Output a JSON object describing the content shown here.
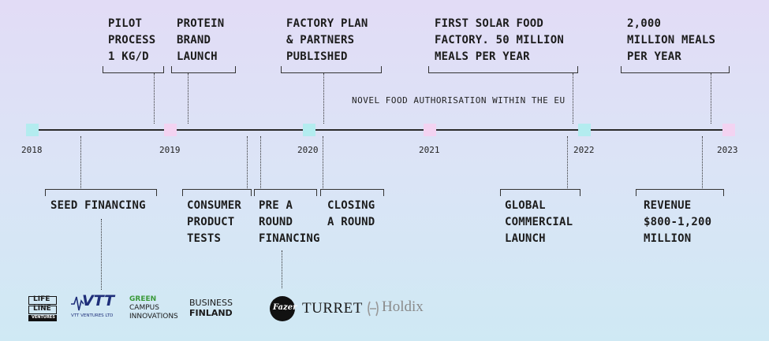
{
  "years": [
    "2018",
    "2019",
    "2020",
    "2021",
    "2022",
    "2023"
  ],
  "milestones_top": {
    "pilot": "PILOT\nPROCESS\n1 KG/D",
    "protein": "PROTEIN\nBRAND\nLAUNCH",
    "factory_plan": "FACTORY PLAN\n& PARTNERS\nPUBLISHED",
    "first_solar": "FIRST SOLAR FOOD\nFACTORY. 50 MILLION\nMEALS PER YEAR",
    "meals_2000": "2,000\nMILLION MEALS\nPER YEAR"
  },
  "novel_food": "NOVEL FOOD AUTHORISATION WITHIN THE EU",
  "milestones_bottom": {
    "seed": "SEED FINANCING",
    "consumer": "CONSUMER\nPRODUCT\nTESTS",
    "pre_a": "PRE A\nROUND\nFINANCING",
    "closing": "CLOSING\nA ROUND",
    "global": "GLOBAL\nCOMMERCIAL\nLAUNCH",
    "revenue": "REVENUE\n$800-1,200\nMILLION"
  },
  "logos": {
    "lifeline": [
      "LIFE",
      "LINE",
      "VENTURES"
    ],
    "vtt": "VTT",
    "vtt_sub": "VTT VENTURES LTD",
    "green_campus": [
      "GREEN",
      "CAMPUS",
      "INNOVATIONS"
    ],
    "business_finland": [
      "BUSINESS",
      "FINLAND"
    ],
    "fazer": "Fazer",
    "turret": "TURRET",
    "holdix": "Holdix"
  },
  "colors": {
    "cyan_node": "#b3ecef",
    "pink_node": "#f3d3f1",
    "green_logo": "#3a9a3a"
  }
}
